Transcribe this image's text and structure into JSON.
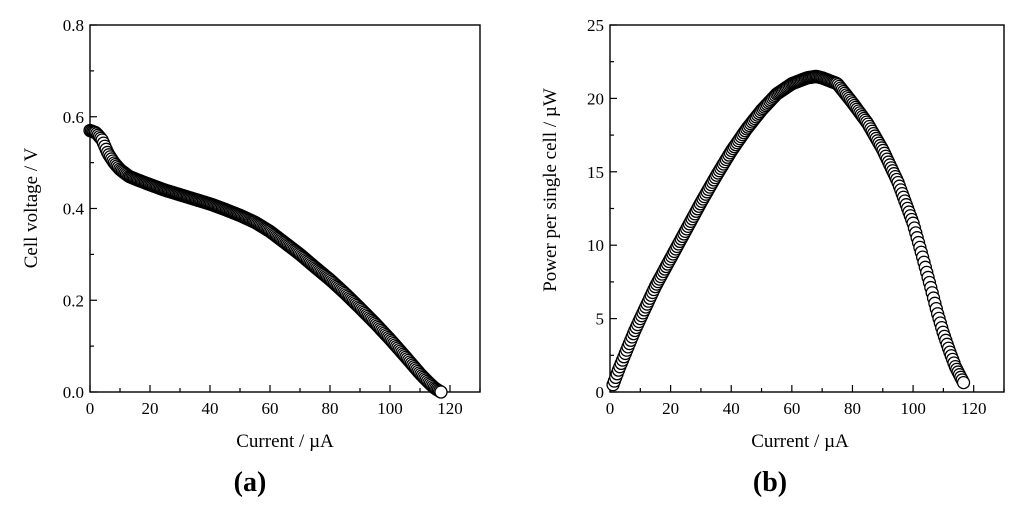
{
  "chart_data": [
    {
      "type": "scatter",
      "panel_label": "(a)",
      "xlabel": "Current / µA",
      "ylabel": "Cell voltage / V",
      "xlim": [
        0,
        130
      ],
      "ylim": [
        0,
        0.8
      ],
      "xticks": [
        0,
        20,
        40,
        60,
        80,
        100,
        120
      ],
      "yticks": [
        0.0,
        0.2,
        0.4,
        0.6,
        0.8
      ],
      "xtick_labels": [
        "0",
        "20",
        "40",
        "60",
        "80",
        "100",
        "120"
      ],
      "ytick_labels": [
        "0.0",
        "0.2",
        "0.4",
        "0.6",
        "0.8"
      ],
      "grid": false,
      "marker": "open-circle",
      "curve": {
        "x": [
          0,
          2,
          4,
          6,
          8,
          10,
          13,
          16,
          20,
          25,
          30,
          35,
          40,
          45,
          50,
          55,
          60,
          65,
          70,
          75,
          80,
          85,
          90,
          95,
          100,
          105,
          110,
          113,
          115,
          117
        ],
        "y": [
          0.57,
          0.565,
          0.55,
          0.52,
          0.5,
          0.485,
          0.47,
          0.462,
          0.452,
          0.44,
          0.43,
          0.42,
          0.41,
          0.398,
          0.385,
          0.37,
          0.35,
          0.325,
          0.3,
          0.272,
          0.245,
          0.215,
          0.183,
          0.15,
          0.115,
          0.078,
          0.04,
          0.02,
          0.008,
          0.0
        ]
      }
    },
    {
      "type": "scatter",
      "panel_label": "(b)",
      "xlabel": "Current / µA",
      "ylabel": "Power per single cell / µW",
      "xlim": [
        0,
        130
      ],
      "ylim": [
        0,
        25
      ],
      "xticks": [
        0,
        20,
        40,
        60,
        80,
        100,
        120
      ],
      "yticks": [
        0,
        5,
        10,
        15,
        20,
        25
      ],
      "xtick_labels": [
        "0",
        "20",
        "40",
        "60",
        "80",
        "100",
        "120"
      ],
      "ytick_labels": [
        "0",
        "5",
        "10",
        "15",
        "20",
        "25"
      ],
      "grid": false,
      "marker": "open-circle",
      "curve": {
        "x": [
          1,
          3,
          5,
          8,
          10,
          15,
          20,
          25,
          30,
          35,
          40,
          45,
          50,
          55,
          60,
          65,
          68,
          70,
          75,
          80,
          85,
          90,
          95,
          100,
          103,
          106,
          108,
          110,
          112,
          114,
          116,
          117
        ],
        "y": [
          0.5,
          1.6,
          2.6,
          4.1,
          5.0,
          7.2,
          9.1,
          11.0,
          12.9,
          14.7,
          16.4,
          17.9,
          19.2,
          20.3,
          21.0,
          21.4,
          21.5,
          21.4,
          21.0,
          19.7,
          18.3,
          16.5,
          14.3,
          11.5,
          9.3,
          7.0,
          5.4,
          4.0,
          2.8,
          1.7,
          0.9,
          0.5
        ]
      }
    }
  ]
}
